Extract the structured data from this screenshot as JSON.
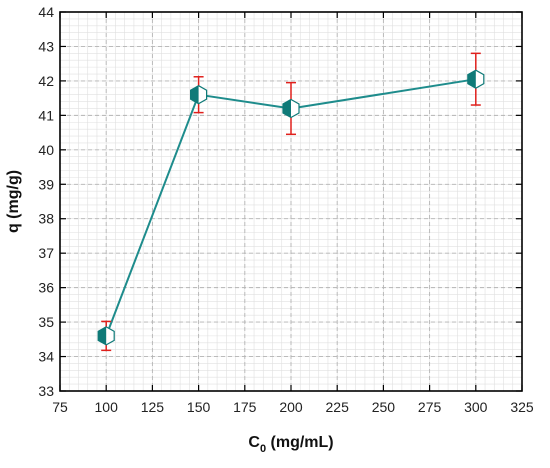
{
  "chart_data": {
    "type": "line",
    "title": "",
    "xlabel": "C",
    "xlabel_subscript": "0",
    "xlabel_unit": " (mg/mL)",
    "ylabel": "q (mg/g)",
    "xlim": [
      75,
      325
    ],
    "ylim": [
      33,
      44
    ],
    "xticks": [
      75,
      100,
      125,
      150,
      175,
      200,
      225,
      250,
      275,
      300,
      325
    ],
    "yticks": [
      33,
      34,
      35,
      36,
      37,
      38,
      39,
      40,
      41,
      42,
      43,
      44
    ],
    "grid": true,
    "series": [
      {
        "x": [
          100,
          150,
          200,
          300
        ],
        "y": [
          34.6,
          41.6,
          41.2,
          42.05
        ],
        "error": [
          0.42,
          0.52,
          0.75,
          0.75
        ]
      }
    ]
  },
  "colors": {
    "line": "#1e8c8c",
    "marker_fill": "#0f7a78",
    "error_bar": "#e0201c",
    "grid_major": "#b4b4b4",
    "grid_minor": "#e0e0e0",
    "axis": "#000000"
  }
}
